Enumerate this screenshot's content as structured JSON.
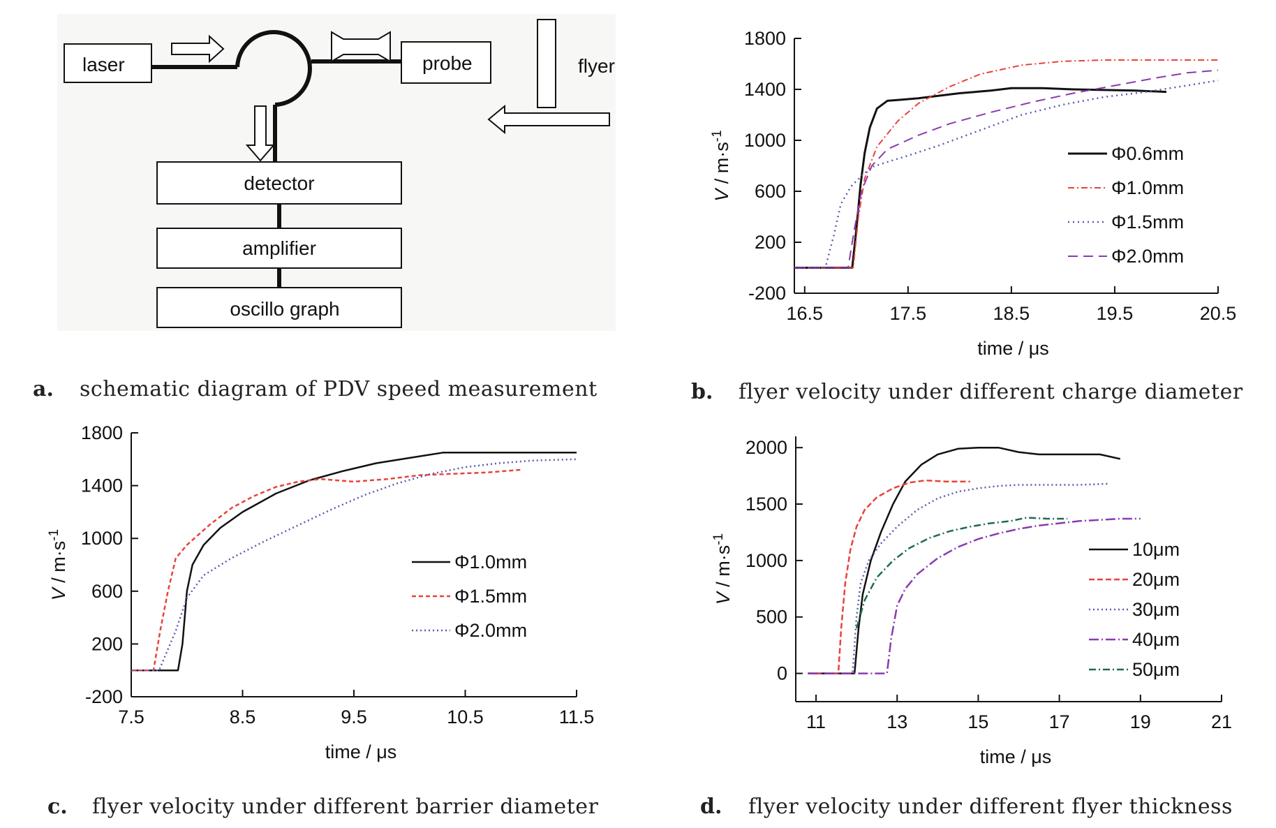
{
  "diagram": {
    "boxes": {
      "laser": "laser",
      "probe": "probe",
      "flyer": "flyer",
      "detector": "detector",
      "amplifier": "amplifier",
      "oscillo": "oscillo graph"
    }
  },
  "captions": [
    {
      "letter": "a.",
      "text": "schematic diagram of PDV speed measurement"
    },
    {
      "letter": "b.",
      "text": "flyer velocity under different charge diameter"
    },
    {
      "letter": "c.",
      "text": "flyer velocity under different barrier diameter"
    },
    {
      "letter": "d.",
      "text": "flyer velocity under different flyer thickness"
    }
  ],
  "chart_data": [
    {
      "id": "b",
      "type": "line",
      "xlabel": "time / μs",
      "ylabel_main": "V",
      "ylabel_unit": "m·s",
      "ylabel_sup": "-1",
      "xlim": [
        16.4,
        20.5
      ],
      "ylim": [
        -200,
        1800
      ],
      "xticks": [
        16.5,
        17.5,
        18.5,
        19.5,
        20.5
      ],
      "xtick_labels": [
        "16.5",
        "17.5",
        "18.5",
        "19.5",
        "20.5"
      ],
      "yticks": [
        -200,
        200,
        600,
        1000,
        1400,
        1800
      ],
      "ytick_labels": [
        "-200",
        "200",
        "600",
        "1000",
        "1400",
        "1800"
      ],
      "legend_position": "center-right",
      "series": [
        {
          "name": "Φ0.6mm",
          "color": "#111111",
          "dash": "",
          "width": 3,
          "points": [
            [
              16.4,
              0
            ],
            [
              16.96,
              0
            ],
            [
              17.0,
              300
            ],
            [
              17.04,
              650
            ],
            [
              17.08,
              900
            ],
            [
              17.13,
              1100
            ],
            [
              17.2,
              1250
            ],
            [
              17.3,
              1310
            ],
            [
              17.45,
              1320
            ],
            [
              17.6,
              1330
            ],
            [
              18.0,
              1370
            ],
            [
              18.3,
              1390
            ],
            [
              18.5,
              1410
            ],
            [
              18.8,
              1410
            ],
            [
              19.1,
              1400
            ],
            [
              19.4,
              1395
            ],
            [
              19.7,
              1390
            ],
            [
              20.0,
              1380
            ]
          ]
        },
        {
          "name": "Φ1.0mm",
          "color": "#e8423a",
          "dash": "9,4,2,4",
          "width": 2,
          "points": [
            [
              16.4,
              0
            ],
            [
              16.97,
              0
            ],
            [
              17.02,
              400
            ],
            [
              17.08,
              700
            ],
            [
              17.2,
              950
            ],
            [
              17.4,
              1150
            ],
            [
              17.6,
              1290
            ],
            [
              17.9,
              1420
            ],
            [
              18.2,
              1520
            ],
            [
              18.6,
              1590
            ],
            [
              19.0,
              1620
            ],
            [
              19.4,
              1630
            ],
            [
              19.8,
              1630
            ],
            [
              20.2,
              1630
            ],
            [
              20.5,
              1630
            ]
          ]
        },
        {
          "name": "Φ1.5mm",
          "color": "#5a5ab0",
          "dash": "2,5",
          "width": 2.5,
          "points": [
            [
              16.4,
              0
            ],
            [
              16.7,
              0
            ],
            [
              16.78,
              250
            ],
            [
              16.85,
              500
            ],
            [
              16.95,
              640
            ],
            [
              17.05,
              720
            ],
            [
              17.15,
              790
            ],
            [
              17.3,
              830
            ],
            [
              17.5,
              880
            ],
            [
              17.8,
              960
            ],
            [
              18.2,
              1080
            ],
            [
              18.6,
              1200
            ],
            [
              19.0,
              1280
            ],
            [
              19.4,
              1340
            ],
            [
              19.8,
              1380
            ],
            [
              20.2,
              1430
            ],
            [
              20.5,
              1470
            ]
          ]
        },
        {
          "name": "Φ2.0mm",
          "color": "#8a3bb0",
          "dash": "14,8",
          "width": 2,
          "points": [
            [
              16.4,
              0
            ],
            [
              16.92,
              0
            ],
            [
              16.98,
              300
            ],
            [
              17.05,
              600
            ],
            [
              17.15,
              800
            ],
            [
              17.3,
              930
            ],
            [
              17.6,
              1040
            ],
            [
              17.9,
              1130
            ],
            [
              18.3,
              1220
            ],
            [
              18.7,
              1300
            ],
            [
              19.1,
              1370
            ],
            [
              19.5,
              1430
            ],
            [
              19.9,
              1490
            ],
            [
              20.2,
              1530
            ],
            [
              20.5,
              1550
            ]
          ]
        }
      ]
    },
    {
      "id": "c",
      "type": "line",
      "xlabel": "time / μs",
      "ylabel_main": "V",
      "ylabel_unit": "m·s",
      "ylabel_sup": "-1",
      "xlim": [
        7.5,
        11.5
      ],
      "ylim": [
        -200,
        1800
      ],
      "xticks": [
        7.5,
        8.5,
        9.5,
        10.5,
        11.5
      ],
      "xtick_labels": [
        "7.5",
        "8.5",
        "9.5",
        "10.5",
        "11.5"
      ],
      "yticks": [
        -200,
        200,
        600,
        1000,
        1400,
        1800
      ],
      "ytick_labels": [
        "-200",
        "200",
        "600",
        "1000",
        "1400",
        "1800"
      ],
      "legend_position": "center-right",
      "series": [
        {
          "name": "Φ1.0mm",
          "color": "#111111",
          "dash": "",
          "width": 2.5,
          "points": [
            [
              7.5,
              0
            ],
            [
              7.92,
              0
            ],
            [
              7.96,
              200
            ],
            [
              8.0,
              600
            ],
            [
              8.05,
              800
            ],
            [
              8.15,
              950
            ],
            [
              8.3,
              1080
            ],
            [
              8.5,
              1200
            ],
            [
              8.8,
              1340
            ],
            [
              9.1,
              1440
            ],
            [
              9.4,
              1510
            ],
            [
              9.7,
              1570
            ],
            [
              10.0,
              1610
            ],
            [
              10.3,
              1650
            ],
            [
              10.6,
              1650
            ],
            [
              10.9,
              1650
            ],
            [
              11.2,
              1650
            ],
            [
              11.5,
              1650
            ]
          ]
        },
        {
          "name": "Φ1.5mm",
          "color": "#e8423a",
          "dash": "6,4",
          "width": 2.5,
          "points": [
            [
              7.5,
              0
            ],
            [
              7.7,
              0
            ],
            [
              7.76,
              300
            ],
            [
              7.83,
              600
            ],
            [
              7.9,
              850
            ],
            [
              8.0,
              950
            ],
            [
              8.2,
              1100
            ],
            [
              8.4,
              1230
            ],
            [
              8.6,
              1320
            ],
            [
              8.8,
              1390
            ],
            [
              9.0,
              1430
            ],
            [
              9.2,
              1450
            ],
            [
              9.5,
              1430
            ],
            [
              9.8,
              1450
            ],
            [
              10.1,
              1480
            ],
            [
              10.4,
              1490
            ],
            [
              10.7,
              1500
            ],
            [
              11.0,
              1520
            ]
          ]
        },
        {
          "name": "Φ2.0mm",
          "color": "#5a5ab0",
          "dash": "2,4",
          "width": 2.5,
          "points": [
            [
              7.5,
              0
            ],
            [
              7.75,
              0
            ],
            [
              7.8,
              100
            ],
            [
              7.9,
              300
            ],
            [
              8.0,
              550
            ],
            [
              8.15,
              720
            ],
            [
              8.4,
              850
            ],
            [
              8.7,
              980
            ],
            [
              9.0,
              1100
            ],
            [
              9.3,
              1220
            ],
            [
              9.6,
              1330
            ],
            [
              9.9,
              1420
            ],
            [
              10.2,
              1490
            ],
            [
              10.5,
              1540
            ],
            [
              10.8,
              1570
            ],
            [
              11.1,
              1590
            ],
            [
              11.5,
              1600
            ]
          ]
        }
      ]
    },
    {
      "id": "d",
      "type": "line",
      "xlabel": "time / μs",
      "ylabel_main": "V",
      "ylabel_unit": "m·s",
      "ylabel_sup": "-1",
      "xlim": [
        10.5,
        21
      ],
      "ylim": [
        -250,
        2100
      ],
      "xticks": [
        11,
        13,
        15,
        17,
        19,
        21
      ],
      "xtick_labels": [
        "11",
        "13",
        "15",
        "17",
        "19",
        "21"
      ],
      "yticks": [
        0,
        500,
        1000,
        1500,
        2000
      ],
      "ytick_labels": [
        "0",
        "500",
        "1000",
        "1500",
        "2000"
      ],
      "legend_position": "right",
      "series": [
        {
          "name": "10μm",
          "color": "#111111",
          "dash": "",
          "width": 2.5,
          "points": [
            [
              10.8,
              0
            ],
            [
              11.95,
              0
            ],
            [
              12.05,
              400
            ],
            [
              12.15,
              700
            ],
            [
              12.35,
              1000
            ],
            [
              12.6,
              1250
            ],
            [
              12.9,
              1500
            ],
            [
              13.2,
              1700
            ],
            [
              13.6,
              1850
            ],
            [
              14.0,
              1940
            ],
            [
              14.5,
              1990
            ],
            [
              15.0,
              2000
            ],
            [
              15.5,
              2000
            ],
            [
              16.0,
              1960
            ],
            [
              16.5,
              1940
            ],
            [
              17.0,
              1940
            ],
            [
              17.5,
              1940
            ],
            [
              18.0,
              1940
            ],
            [
              18.5,
              1900
            ]
          ]
        },
        {
          "name": "20μm",
          "color": "#e8423a",
          "dash": "8,4",
          "width": 2.5,
          "points": [
            [
              10.8,
              0
            ],
            [
              11.55,
              0
            ],
            [
              11.62,
              400
            ],
            [
              11.72,
              800
            ],
            [
              11.85,
              1100
            ],
            [
              12.0,
              1300
            ],
            [
              12.2,
              1450
            ],
            [
              12.5,
              1560
            ],
            [
              12.9,
              1640
            ],
            [
              13.3,
              1690
            ],
            [
              13.7,
              1710
            ],
            [
              14.2,
              1700
            ],
            [
              14.8,
              1700
            ]
          ]
        },
        {
          "name": "30μm",
          "color": "#5a5ab0",
          "dash": "2,4",
          "width": 2.5,
          "points": [
            [
              10.8,
              0
            ],
            [
              11.9,
              0
            ],
            [
              12.0,
              500
            ],
            [
              12.1,
              800
            ],
            [
              12.3,
              1000
            ],
            [
              12.6,
              1150
            ],
            [
              13.0,
              1300
            ],
            [
              13.5,
              1450
            ],
            [
              14.0,
              1550
            ],
            [
              14.5,
              1610
            ],
            [
              15.0,
              1640
            ],
            [
              15.5,
              1660
            ],
            [
              16.0,
              1670
            ],
            [
              16.5,
              1670
            ],
            [
              17.0,
              1670
            ],
            [
              17.5,
              1670
            ],
            [
              18.2,
              1680
            ]
          ]
        },
        {
          "name": "40μm",
          "color": "#8a3bb0",
          "dash": "14,4,2,4",
          "width": 2.5,
          "points": [
            [
              10.8,
              0
            ],
            [
              12.75,
              0
            ],
            [
              12.85,
              300
            ],
            [
              13.0,
              600
            ],
            [
              13.2,
              750
            ],
            [
              13.5,
              880
            ],
            [
              14.0,
              1020
            ],
            [
              14.5,
              1120
            ],
            [
              15.0,
              1190
            ],
            [
              15.5,
              1240
            ],
            [
              16.0,
              1280
            ],
            [
              16.5,
              1310
            ],
            [
              17.0,
              1330
            ],
            [
              17.5,
              1350
            ],
            [
              18.0,
              1360
            ],
            [
              18.5,
              1370
            ],
            [
              19.0,
              1370
            ]
          ]
        },
        {
          "name": "50μm",
          "color": "#1f6b4f",
          "dash": "10,4,2,4",
          "width": 2.5,
          "points": [
            [
              12.0,
              400
            ],
            [
              12.2,
              650
            ],
            [
              12.5,
              850
            ],
            [
              12.9,
              1000
            ],
            [
              13.3,
              1110
            ],
            [
              13.8,
              1200
            ],
            [
              14.3,
              1260
            ],
            [
              14.8,
              1300
            ],
            [
              15.3,
              1330
            ],
            [
              15.8,
              1350
            ],
            [
              16.2,
              1380
            ],
            [
              16.7,
              1370
            ],
            [
              17.2,
              1370
            ]
          ]
        }
      ]
    }
  ]
}
